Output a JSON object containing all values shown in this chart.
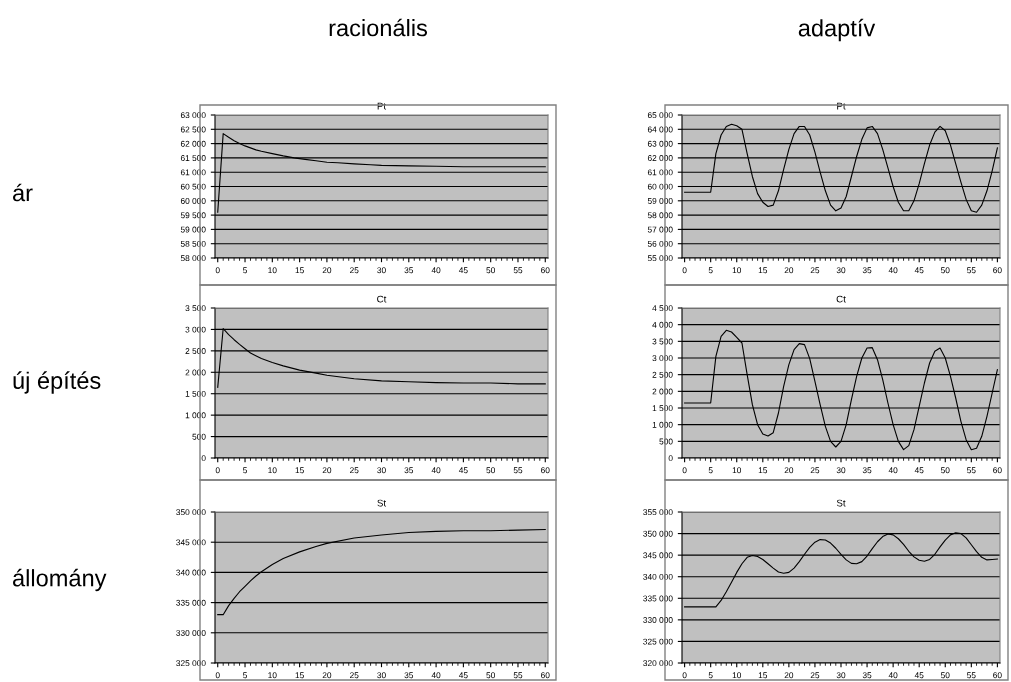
{
  "chart_data": [
    {
      "type": "line",
      "title": "Pt",
      "annotations": [
        "racionális",
        "ár"
      ],
      "grid": "y",
      "marker": "none",
      "line_style": "solid",
      "xlim": [
        -0.5,
        60.5
      ],
      "xticks": [
        0,
        5,
        10,
        15,
        20,
        25,
        30,
        35,
        40,
        45,
        50,
        55,
        60
      ],
      "ylim": [
        58000,
        63000
      ],
      "yticks": [
        {
          "value": 58000,
          "label": "58 000"
        },
        {
          "value": 58500,
          "label": "58 500"
        },
        {
          "value": 59000,
          "label": "59 000"
        },
        {
          "value": 59500,
          "label": "59 500"
        },
        {
          "value": 60000,
          "label": "60 000"
        },
        {
          "value": 60500,
          "label": "60 500"
        },
        {
          "value": 61000,
          "label": "61 000"
        },
        {
          "value": 61500,
          "label": "61 500"
        },
        {
          "value": 62000,
          "label": "62 000"
        },
        {
          "value": 62500,
          "label": "62 500"
        },
        {
          "value": 63000,
          "label": "63 000"
        }
      ],
      "series": [
        {
          "color": "#000000",
          "x": [
            0,
            1,
            2,
            3,
            4,
            5,
            6,
            7,
            8,
            10,
            12,
            14,
            16,
            18,
            20,
            22,
            25,
            28,
            30,
            35,
            40,
            45,
            50,
            55,
            60
          ],
          "values": [
            59600,
            62350,
            62220,
            62100,
            62000,
            61920,
            61850,
            61780,
            61730,
            61650,
            61570,
            61500,
            61450,
            61400,
            61350,
            61330,
            61290,
            61260,
            61240,
            61220,
            61210,
            61190,
            61190,
            61190,
            61190
          ]
        }
      ]
    },
    {
      "type": "line",
      "title": "Pt",
      "annotations": [
        "adaptív"
      ],
      "grid": "y",
      "marker": "none",
      "line_style": "solid",
      "xlim": [
        -0.5,
        60.5
      ],
      "xticks": [
        0,
        5,
        10,
        15,
        20,
        25,
        30,
        35,
        40,
        45,
        50,
        55,
        60
      ],
      "ylim": [
        55000,
        65000
      ],
      "yticks": [
        {
          "value": 55000,
          "label": "55 000"
        },
        {
          "value": 56000,
          "label": "56 000"
        },
        {
          "value": 57000,
          "label": "57 000"
        },
        {
          "value": 58000,
          "label": "58 000"
        },
        {
          "value": 59000,
          "label": "59 000"
        },
        {
          "value": 60000,
          "label": "60 000"
        },
        {
          "value": 61000,
          "label": "61 000"
        },
        {
          "value": 62000,
          "label": "62 000"
        },
        {
          "value": 63000,
          "label": "63 000"
        },
        {
          "value": 64000,
          "label": "64 000"
        },
        {
          "value": 65000,
          "label": "65 000"
        }
      ],
      "series": [
        {
          "color": "#000000",
          "x": [
            0,
            5,
            6,
            7,
            8,
            9,
            10,
            11,
            12,
            13,
            14,
            15,
            16,
            17,
            18,
            19,
            20,
            21,
            22,
            23,
            24,
            25,
            26,
            27,
            28,
            29,
            30,
            31,
            32,
            33,
            34,
            35,
            36,
            37,
            38,
            39,
            40,
            41,
            42,
            43,
            44,
            45,
            46,
            47,
            48,
            49,
            50,
            51,
            52,
            53,
            54,
            55,
            56,
            57,
            58,
            59,
            60
          ],
          "values": [
            59600,
            59600,
            62300,
            63600,
            64200,
            64350,
            64250,
            64000,
            62300,
            60700,
            59500,
            58900,
            58600,
            58700,
            59700,
            61200,
            62600,
            63700,
            64200,
            64200,
            63600,
            62400,
            61000,
            59700,
            58700,
            58300,
            58500,
            59300,
            60700,
            62100,
            63300,
            64100,
            64200,
            63700,
            62600,
            61300,
            60000,
            58900,
            58300,
            58300,
            59000,
            60200,
            61600,
            62900,
            63800,
            64200,
            63900,
            62900,
            61600,
            60300,
            59100,
            58300,
            58200,
            58700,
            59700,
            61100,
            62700
          ]
        }
      ]
    },
    {
      "type": "line",
      "title": "Ct",
      "annotations": [
        "új építés"
      ],
      "grid": "y",
      "marker": "none",
      "line_style": "solid",
      "xlim": [
        -0.5,
        60.5
      ],
      "xticks": [
        0,
        5,
        10,
        15,
        20,
        25,
        30,
        35,
        40,
        45,
        50,
        55,
        60
      ],
      "ylim": [
        0,
        3500
      ],
      "yticks": [
        0,
        500,
        {
          "value": 1000,
          "label": "1 000"
        },
        {
          "value": 1500,
          "label": "1 500"
        },
        {
          "value": 2000,
          "label": "2 000"
        },
        {
          "value": 2500,
          "label": "2 500"
        },
        {
          "value": 3000,
          "label": "3 000"
        },
        {
          "value": 3500,
          "label": "3 500"
        }
      ],
      "series": [
        {
          "color": "#000000",
          "x": [
            0,
            1,
            2,
            3,
            4,
            5,
            6,
            8,
            10,
            12,
            15,
            18,
            20,
            25,
            30,
            35,
            40,
            45,
            50,
            55,
            60
          ],
          "values": [
            1650,
            3020,
            2880,
            2760,
            2650,
            2550,
            2450,
            2320,
            2230,
            2150,
            2050,
            1980,
            1930,
            1850,
            1800,
            1780,
            1760,
            1750,
            1750,
            1730,
            1730
          ]
        }
      ]
    },
    {
      "type": "line",
      "title": "Ct",
      "grid": "y",
      "marker": "none",
      "line_style": "solid",
      "xlim": [
        -0.5,
        60.5
      ],
      "xticks": [
        0,
        5,
        10,
        15,
        20,
        25,
        30,
        35,
        40,
        45,
        50,
        55,
        60
      ],
      "ylim": [
        0,
        4500
      ],
      "yticks": [
        0,
        500,
        {
          "value": 1000,
          "label": "1 000"
        },
        {
          "value": 1500,
          "label": "1 500"
        },
        {
          "value": 2000,
          "label": "2 000"
        },
        {
          "value": 2500,
          "label": "2 500"
        },
        {
          "value": 3000,
          "label": "3 000"
        },
        {
          "value": 3500,
          "label": "3 500"
        },
        {
          "value": 4000,
          "label": "4 000"
        },
        {
          "value": 4500,
          "label": "4 500"
        }
      ],
      "series": [
        {
          "color": "#000000",
          "x": [
            0,
            5,
            6,
            7,
            8,
            9,
            10,
            11,
            12,
            13,
            14,
            15,
            16,
            17,
            18,
            19,
            20,
            21,
            22,
            23,
            24,
            25,
            26,
            27,
            28,
            29,
            30,
            31,
            32,
            33,
            34,
            35,
            36,
            37,
            38,
            39,
            40,
            41,
            42,
            43,
            44,
            45,
            46,
            47,
            48,
            49,
            50,
            51,
            52,
            53,
            54,
            55,
            56,
            57,
            58,
            59,
            60
          ],
          "values": [
            1650,
            1650,
            3050,
            3650,
            3830,
            3780,
            3620,
            3450,
            2500,
            1600,
            1000,
            720,
            660,
            760,
            1350,
            2150,
            2800,
            3250,
            3430,
            3400,
            2980,
            2300,
            1600,
            950,
            500,
            330,
            500,
            1000,
            1750,
            2450,
            3000,
            3300,
            3310,
            2950,
            2350,
            1650,
            1000,
            500,
            250,
            370,
            850,
            1550,
            2250,
            2850,
            3200,
            3300,
            3000,
            2450,
            1800,
            1100,
            550,
            250,
            290,
            650,
            1250,
            1950,
            2650
          ]
        }
      ]
    },
    {
      "type": "line",
      "title": "St",
      "annotations": [
        "állomány"
      ],
      "grid": "y",
      "marker": "none",
      "line_style": "solid",
      "xlim": [
        -0.5,
        60.5
      ],
      "xticks": [
        0,
        5,
        10,
        15,
        20,
        25,
        30,
        35,
        40,
        45,
        50,
        55,
        60
      ],
      "ylim": [
        325000,
        350000
      ],
      "yticks": [
        {
          "value": 325000,
          "label": "325 000"
        },
        {
          "value": 330000,
          "label": "330 000"
        },
        {
          "value": 335000,
          "label": "335 000"
        },
        {
          "value": 340000,
          "label": "340 000"
        },
        {
          "value": 345000,
          "label": "345 000"
        },
        {
          "value": 350000,
          "label": "350 000"
        }
      ],
      "series": [
        {
          "color": "#000000",
          "x": [
            0,
            1,
            2,
            3,
            4,
            5,
            6,
            7,
            8,
            10,
            12,
            15,
            18,
            20,
            25,
            30,
            35,
            40,
            45,
            50,
            55,
            60
          ],
          "values": [
            333000,
            333000,
            334500,
            335700,
            336800,
            337700,
            338600,
            339400,
            340100,
            341300,
            342300,
            343400,
            344300,
            344800,
            345700,
            346200,
            346600,
            346800,
            346900,
            346900,
            347000,
            347100
          ]
        }
      ]
    },
    {
      "type": "line",
      "title": "St",
      "grid": "y",
      "marker": "none",
      "line_style": "solid",
      "xlim": [
        -0.5,
        60.5
      ],
      "xticks": [
        0,
        5,
        10,
        15,
        20,
        25,
        30,
        35,
        40,
        45,
        50,
        55,
        60
      ],
      "ylim": [
        320000,
        355000
      ],
      "yticks": [
        {
          "value": 320000,
          "label": "320 000"
        },
        {
          "value": 325000,
          "label": "325 000"
        },
        {
          "value": 330000,
          "label": "330 000"
        },
        {
          "value": 335000,
          "label": "335 000"
        },
        {
          "value": 340000,
          "label": "340 000"
        },
        {
          "value": 345000,
          "label": "345 000"
        },
        {
          "value": 350000,
          "label": "350 000"
        },
        {
          "value": 355000,
          "label": "355 000"
        }
      ],
      "series": [
        {
          "color": "#000000",
          "x": [
            0,
            6,
            7,
            8,
            9,
            10,
            11,
            12,
            13,
            14,
            15,
            16,
            17,
            18,
            19,
            20,
            21,
            22,
            23,
            24,
            25,
            26,
            27,
            28,
            29,
            30,
            31,
            32,
            33,
            34,
            35,
            36,
            37,
            38,
            39,
            40,
            41,
            42,
            43,
            44,
            45,
            46,
            47,
            48,
            49,
            50,
            51,
            52,
            53,
            54,
            55,
            56,
            57,
            58,
            59,
            60
          ],
          "values": [
            333000,
            333000,
            334500,
            336500,
            338700,
            341000,
            343000,
            344500,
            344900,
            344700,
            344000,
            343000,
            342000,
            341100,
            340800,
            341000,
            342000,
            343500,
            345200,
            346800,
            348000,
            348600,
            348500,
            347800,
            346600,
            345200,
            343900,
            343100,
            343000,
            343500,
            344800,
            346500,
            348100,
            349300,
            349900,
            349700,
            348800,
            347500,
            345900,
            344600,
            343800,
            343600,
            344000,
            345200,
            346900,
            348500,
            349700,
            350200,
            350000,
            349000,
            347400,
            345800,
            344500,
            343900,
            344000,
            344100
          ]
        }
      ]
    }
  ]
}
